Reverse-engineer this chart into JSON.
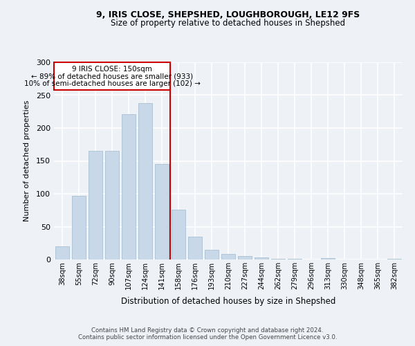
{
  "title1": "9, IRIS CLOSE, SHEPSHED, LOUGHBOROUGH, LE12 9FS",
  "title2": "Size of property relative to detached houses in Shepshed",
  "xlabel": "Distribution of detached houses by size in Shepshed",
  "ylabel": "Number of detached properties",
  "categories": [
    "38sqm",
    "55sqm",
    "72sqm",
    "90sqm",
    "107sqm",
    "124sqm",
    "141sqm",
    "158sqm",
    "176sqm",
    "193sqm",
    "210sqm",
    "227sqm",
    "244sqm",
    "262sqm",
    "279sqm",
    "296sqm",
    "313sqm",
    "330sqm",
    "348sqm",
    "365sqm",
    "382sqm"
  ],
  "values": [
    20,
    97,
    165,
    165,
    221,
    238,
    145,
    76,
    35,
    15,
    8,
    5,
    3,
    1,
    1,
    0,
    2,
    0,
    0,
    0,
    1
  ],
  "bar_color": "#c8d8e8",
  "bar_edge_color": "#a8c0d0",
  "vline_color": "#cc0000",
  "annotation_line1": "9 IRIS CLOSE: 150sqm",
  "annotation_line2": "← 89% of detached houses are smaller (933)",
  "annotation_line3": "10% of semi-detached houses are larger (102) →",
  "annotation_box_color": "#cc0000",
  "footnote1": "Contains HM Land Registry data © Crown copyright and database right 2024.",
  "footnote2": "Contains public sector information licensed under the Open Government Licence v3.0.",
  "bg_color": "#eef2f7",
  "grid_color": "#ffffff",
  "ylim": [
    0,
    300
  ],
  "yticks": [
    0,
    50,
    100,
    150,
    200,
    250,
    300
  ]
}
